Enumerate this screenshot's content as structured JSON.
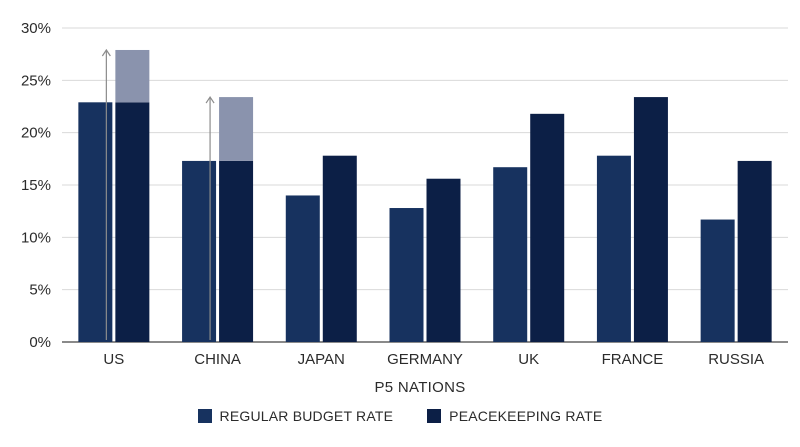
{
  "colors": {
    "regular": "#17325f",
    "peacekeeping": "#0c1f46",
    "overlay": "#8a93ad",
    "grid": "#d9d9d9",
    "axis": "#444444",
    "arrow": "#8c8c8c"
  },
  "chart_data": {
    "type": "bar",
    "title": "",
    "xlabel": "P5 NATIONS",
    "ylabel": "",
    "categories": [
      "US",
      "CHINA",
      "JAPAN",
      "GERMANY",
      "UK",
      "FRANCE",
      "RUSSIA"
    ],
    "series": [
      {
        "name": "REGULAR BUDGET RATE",
        "values": [
          22.9,
          17.3,
          14.0,
          12.8,
          16.7,
          17.8,
          11.7
        ]
      },
      {
        "name": "PEACEKEEPING RATE",
        "values": [
          22.9,
          17.3,
          17.8,
          15.6,
          21.8,
          23.4,
          17.3
        ]
      }
    ],
    "peacekeeping_increase": [
      {
        "category": "US",
        "from": 22.9,
        "to": 27.9
      },
      {
        "category": "CHINA",
        "from": 17.3,
        "to": 23.4
      }
    ],
    "ylim": [
      0,
      30
    ],
    "yticks": [
      0,
      5,
      10,
      15,
      20,
      25,
      30
    ],
    "ytick_labels": [
      "0%",
      "5%",
      "10%",
      "15%",
      "20%",
      "25%",
      "30%"
    ],
    "grid": true,
    "legend_position": "bottom-center"
  }
}
